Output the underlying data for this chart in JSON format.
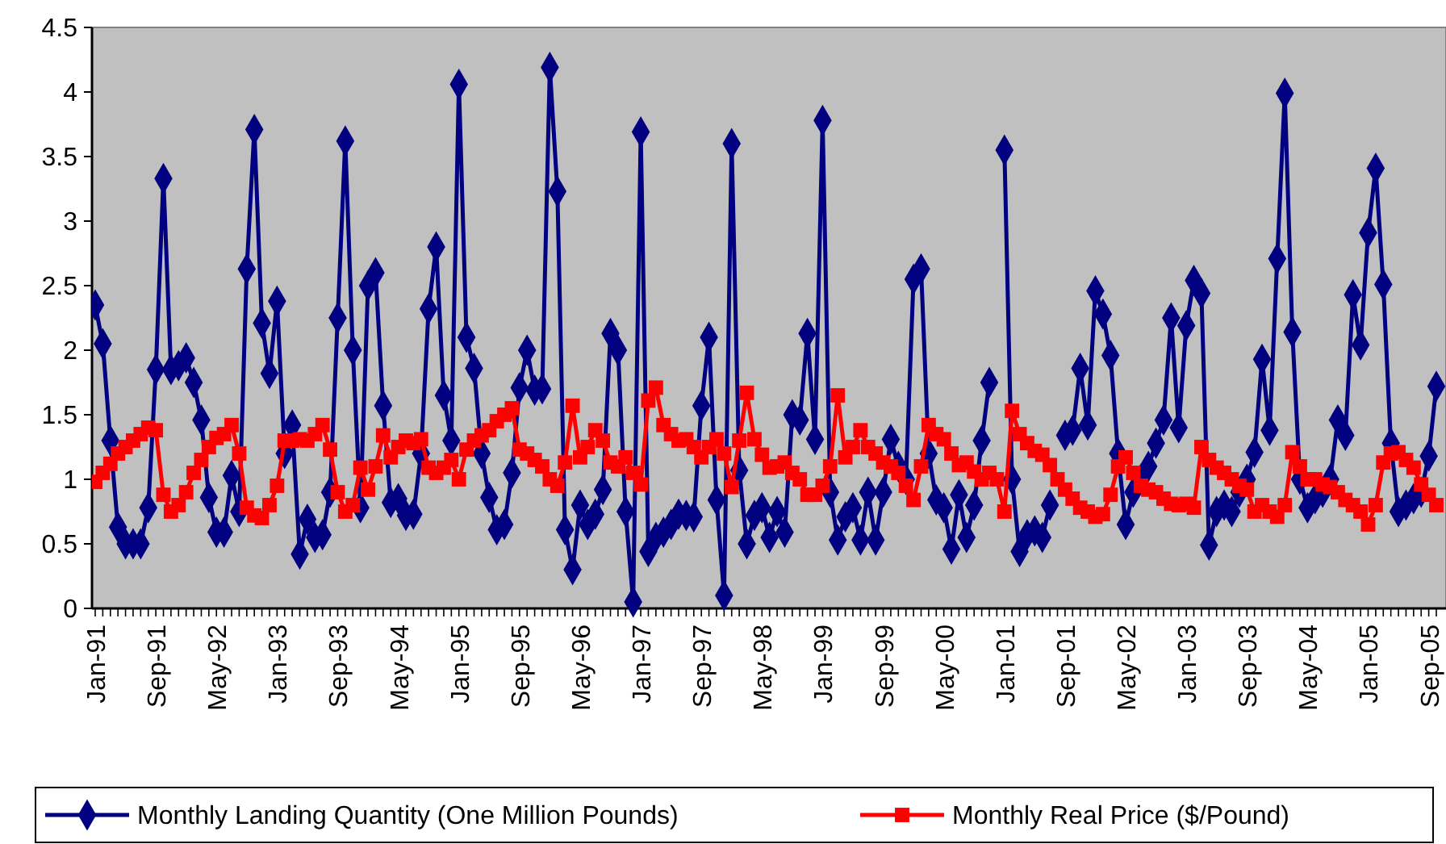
{
  "chart_data": {
    "type": "line",
    "categories": [
      "Jan-91",
      null,
      null,
      null,
      null,
      null,
      null,
      null,
      "Sep-91",
      null,
      null,
      null,
      null,
      null,
      null,
      null,
      "May-92",
      null,
      null,
      null,
      null,
      null,
      null,
      null,
      "Jan-93",
      null,
      null,
      null,
      null,
      null,
      null,
      null,
      "Sep-93",
      null,
      null,
      null,
      null,
      null,
      null,
      null,
      "May-94",
      null,
      null,
      null,
      null,
      null,
      null,
      null,
      "Jan-95",
      null,
      null,
      null,
      null,
      null,
      null,
      null,
      "Sep-95",
      null,
      null,
      null,
      null,
      null,
      null,
      null,
      "May-96",
      null,
      null,
      null,
      null,
      null,
      null,
      null,
      "Jan-97",
      null,
      null,
      null,
      null,
      null,
      null,
      null,
      "Sep-97",
      null,
      null,
      null,
      null,
      null,
      null,
      null,
      "May-98",
      null,
      null,
      null,
      null,
      null,
      null,
      null,
      "Jan-99",
      null,
      null,
      null,
      null,
      null,
      null,
      null,
      "Sep-99",
      null,
      null,
      null,
      null,
      null,
      null,
      null,
      "May-00",
      null,
      null,
      null,
      null,
      null,
      null,
      null,
      "Jan-01",
      null,
      null,
      null,
      null,
      null,
      null,
      null,
      "Sep-01",
      null,
      null,
      null,
      null,
      null,
      null,
      null,
      "May-02",
      null,
      null,
      null,
      null,
      null,
      null,
      null,
      "Jan-03",
      null,
      null,
      null,
      null,
      null,
      null,
      null,
      "Sep-03",
      null,
      null,
      null,
      null,
      null,
      null,
      null,
      "May-04",
      null,
      null,
      null,
      null,
      null,
      null,
      null,
      "Jan-05",
      null,
      null,
      null,
      null,
      null,
      null,
      null,
      "Sep-05",
      null
    ],
    "ylim": [
      0,
      4.5
    ],
    "yticks": [
      0,
      0.5,
      1,
      1.5,
      2,
      2.5,
      3,
      3.5,
      4,
      4.5
    ],
    "grid": false,
    "legend": "bottom",
    "line_style": "solid",
    "series": [
      {
        "name": "Monthly Landing Quantity (One Million Pounds)",
        "color": "#000080",
        "marker": "diamond",
        "values": [
          2.35,
          2.05,
          1.3,
          0.63,
          0.5,
          0.5,
          0.5,
          0.78,
          1.85,
          3.33,
          1.85,
          1.88,
          1.94,
          1.75,
          1.46,
          0.86,
          0.59,
          0.59,
          1.03,
          0.75,
          2.63,
          3.71,
          2.21,
          1.82,
          2.38,
          1.2,
          1.42,
          0.42,
          0.69,
          0.55,
          0.57,
          0.9,
          2.25,
          3.62,
          2.0,
          0.78,
          2.5,
          2.6,
          1.57,
          0.82,
          0.85,
          0.72,
          0.73,
          1.2,
          2.32,
          2.8,
          1.65,
          1.3,
          4.06,
          2.1,
          1.86,
          1.2,
          0.86,
          0.61,
          0.65,
          1.05,
          1.71,
          2.0,
          1.69,
          1.7,
          4.19,
          3.23,
          0.61,
          0.3,
          0.8,
          0.65,
          0.73,
          0.92,
          2.13,
          2.0,
          0.75,
          0.05,
          3.69,
          0.44,
          0.55,
          0.59,
          0.65,
          0.73,
          0.72,
          0.71,
          1.57,
          2.1,
          0.84,
          0.1,
          3.6,
          1.07,
          0.5,
          0.72,
          0.78,
          0.55,
          0.75,
          0.59,
          1.5,
          1.46,
          2.13,
          1.31,
          3.78,
          0.9,
          0.53,
          0.71,
          0.78,
          0.53,
          0.9,
          0.53,
          0.9,
          1.31,
          1.1,
          1.0,
          2.55,
          2.63,
          1.2,
          0.84,
          0.78,
          0.46,
          0.88,
          0.55,
          0.8,
          1.3,
          1.75,
          null,
          3.55,
          1.0,
          0.44,
          0.57,
          0.6,
          0.55,
          0.8,
          null,
          1.34,
          1.38,
          1.86,
          1.42,
          2.46,
          2.28,
          1.96,
          1.2,
          0.65,
          0.9,
          1.0,
          1.1,
          1.28,
          1.46,
          2.25,
          1.4,
          2.19,
          2.54,
          2.44,
          0.49,
          0.75,
          0.8,
          0.75,
          0.9,
          1.0,
          1.21,
          1.93,
          1.38,
          2.71,
          3.99,
          2.14,
          1.0,
          0.78,
          0.85,
          0.9,
          1.0,
          1.46,
          1.34,
          2.43,
          2.04,
          2.91,
          3.41,
          2.51,
          1.28,
          0.75,
          0.8,
          0.85,
          0.9,
          1.18,
          1.72
        ]
      },
      {
        "name": "Monthly Real Price ($/Pound)",
        "color": "#ff0000",
        "marker": "square",
        "values": [
          0.98,
          1.05,
          1.12,
          1.2,
          1.25,
          1.3,
          1.35,
          1.4,
          1.38,
          0.88,
          0.75,
          0.8,
          0.9,
          1.05,
          1.15,
          1.25,
          1.32,
          1.35,
          1.42,
          1.2,
          0.78,
          0.72,
          0.7,
          0.8,
          0.95,
          1.3,
          1.3,
          1.31,
          1.3,
          1.35,
          1.42,
          1.23,
          0.9,
          0.75,
          0.8,
          1.09,
          0.92,
          1.1,
          1.34,
          1.17,
          1.25,
          1.3,
          1.28,
          1.31,
          1.09,
          1.05,
          1.09,
          1.15,
          1.0,
          1.23,
          1.3,
          1.34,
          1.38,
          1.45,
          1.5,
          1.55,
          1.23,
          1.2,
          1.15,
          1.1,
          1.0,
          0.95,
          1.13,
          1.57,
          1.17,
          1.25,
          1.38,
          1.3,
          1.13,
          1.1,
          1.17,
          1.05,
          0.96,
          1.61,
          1.71,
          1.42,
          1.35,
          1.3,
          1.31,
          1.25,
          1.17,
          1.25,
          1.31,
          1.2,
          0.94,
          1.3,
          1.67,
          1.31,
          1.19,
          1.09,
          1.1,
          1.13,
          1.05,
          1.0,
          0.88,
          0.88,
          0.95,
          1.1,
          1.65,
          1.17,
          1.25,
          1.38,
          1.25,
          1.2,
          1.13,
          1.1,
          1.05,
          0.95,
          0.84,
          1.1,
          1.42,
          1.35,
          1.31,
          1.2,
          1.11,
          1.13,
          1.06,
          1.0,
          1.05,
          1.0,
          0.75,
          1.53,
          1.35,
          1.28,
          1.22,
          1.19,
          1.11,
          1.0,
          0.92,
          0.85,
          0.78,
          0.75,
          0.71,
          0.73,
          0.88,
          1.1,
          1.17,
          1.05,
          0.95,
          0.92,
          0.9,
          0.85,
          0.81,
          0.8,
          0.81,
          0.78,
          1.25,
          1.15,
          1.09,
          1.05,
          1.0,
          0.95,
          0.92,
          0.75,
          0.8,
          0.75,
          0.71,
          0.8,
          1.21,
          1.1,
          1.0,
          1.0,
          0.96,
          0.94,
          0.9,
          0.84,
          0.8,
          0.75,
          0.65,
          0.8,
          1.13,
          1.2,
          1.21,
          1.15,
          1.09,
          0.96,
          0.88,
          0.8
        ]
      }
    ]
  }
}
